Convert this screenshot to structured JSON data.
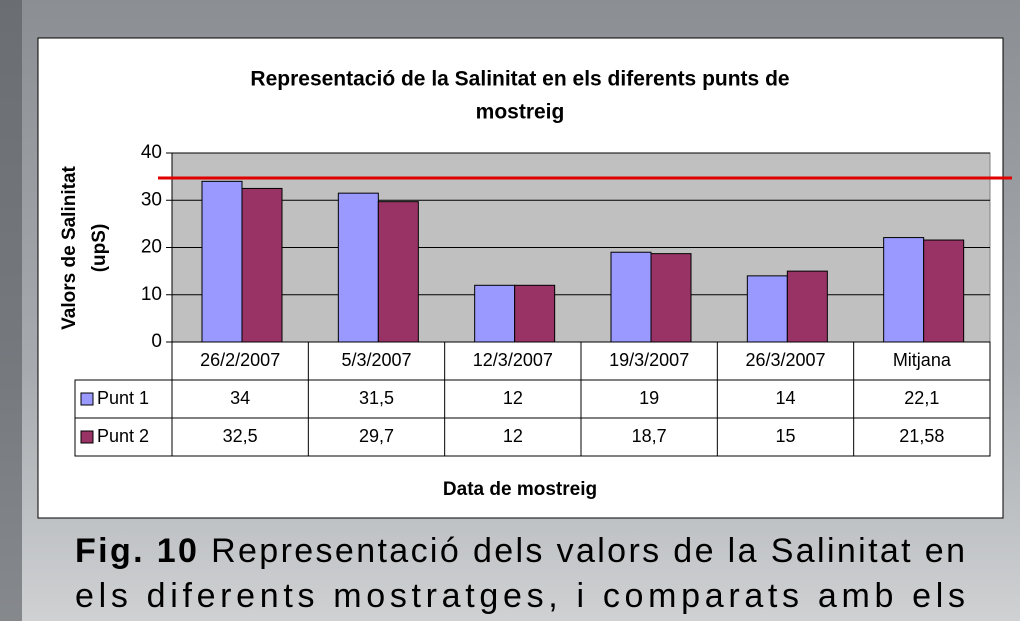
{
  "chart_data": {
    "type": "bar",
    "title": "Representació de la Salinitat en els diferents punts de mostreig",
    "y_label": "Valors de Salinitat (upS)",
    "x_label": "Data de mostreig",
    "categories": [
      "26/2/2007",
      "5/3/2007",
      "12/3/2007",
      "19/3/2007",
      "26/3/2007",
      "Mitjana"
    ],
    "series": [
      {
        "name": "Punt 1",
        "color": "#9999ff",
        "values": [
          34,
          31.5,
          12,
          19,
          14,
          22.1
        ],
        "value_labels": [
          "34",
          "31,5",
          "12",
          "19",
          "14",
          "22,1"
        ]
      },
      {
        "name": "Punt 2",
        "color": "#993366",
        "values": [
          32.5,
          29.7,
          12,
          18.7,
          15,
          21.58
        ],
        "value_labels": [
          "32,5",
          "29,7",
          "12",
          "18,7",
          "15",
          "21,58"
        ]
      }
    ],
    "reference_line": {
      "value": 34.7,
      "color": "#e00000"
    },
    "ylim": [
      0,
      40
    ],
    "yticks": [
      0,
      10,
      20,
      30,
      40
    ],
    "grid": true,
    "data_table": true
  },
  "caption": {
    "label": "Fig. 10",
    "lines": [
      "Representació dels valors de la Salinitat en",
      "els diferents mostratges, i comparats amb els"
    ]
  }
}
